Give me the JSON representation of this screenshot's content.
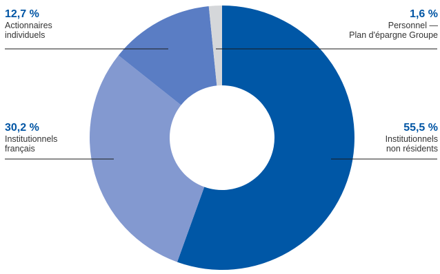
{
  "chart_data": {
    "type": "pie",
    "donut": true,
    "slices": [
      {
        "value": 55.5,
        "value_label": "55,5 %",
        "label_line1": "Institutionnels",
        "label_line2": "non résidents",
        "color": "#0057a6"
      },
      {
        "value": 30.2,
        "value_label": "30,2 %",
        "label_line1": "Institutionnels",
        "label_line2": "français",
        "color": "#8399d0"
      },
      {
        "value": 12.7,
        "value_label": "12,7 %",
        "label_line1": "Actionnaires",
        "label_line2": "individuels",
        "color": "#5a7dc4"
      },
      {
        "value": 1.6,
        "value_label": "1,6 %",
        "label_line1": "Personnel —",
        "label_line2": "Plan d'épargne Groupe",
        "color": "#d5d7da"
      }
    ]
  },
  "colors": {
    "pct_text": "#0055a4",
    "leader_line": "#1a1a1a"
  }
}
